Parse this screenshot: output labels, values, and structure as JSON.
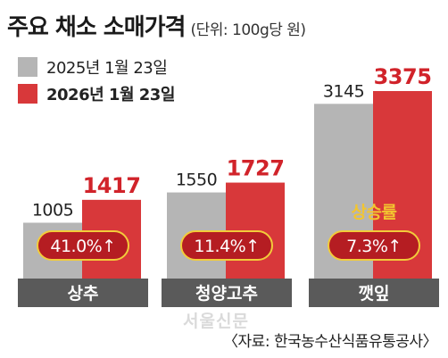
{
  "header": {
    "title": "주요 채소 소매가격",
    "unit": "(단위: 100g당 원)"
  },
  "legend": [
    {
      "label": "2025년 1월 23일",
      "color": "#b5b5b5"
    },
    {
      "label": "2026년 1월 23일",
      "color": "#d8383a"
    }
  ],
  "colors": {
    "prev": "#b5b5b5",
    "curr": "#d8383a",
    "curr_label": "#d1232a",
    "category_band": "#5a5a5a",
    "pill": "#b51d22",
    "pill_border": "#f2cc3a",
    "rate_label": "#f2c530"
  },
  "chart_data": {
    "type": "bar",
    "categories": [
      "상추",
      "청양고추",
      "깻잎"
    ],
    "series": [
      {
        "name": "2025년 1월 23일",
        "values": [
          1005,
          1550,
          3145
        ]
      },
      {
        "name": "2026년 1월 23일",
        "values": [
          1417,
          1727,
          3375
        ]
      }
    ],
    "growth": [
      "41.0%↑",
      "11.4%↑",
      "7.3%↑"
    ],
    "growth_label": "상승률",
    "title": "주요 채소 소매가격",
    "subtitle": "(단위: 100g당 원)",
    "ylim": [
      0,
      3600
    ]
  },
  "footer": {
    "source": "〈자료: 한국농수산식품유통공사〉",
    "watermark": "서울신문"
  }
}
